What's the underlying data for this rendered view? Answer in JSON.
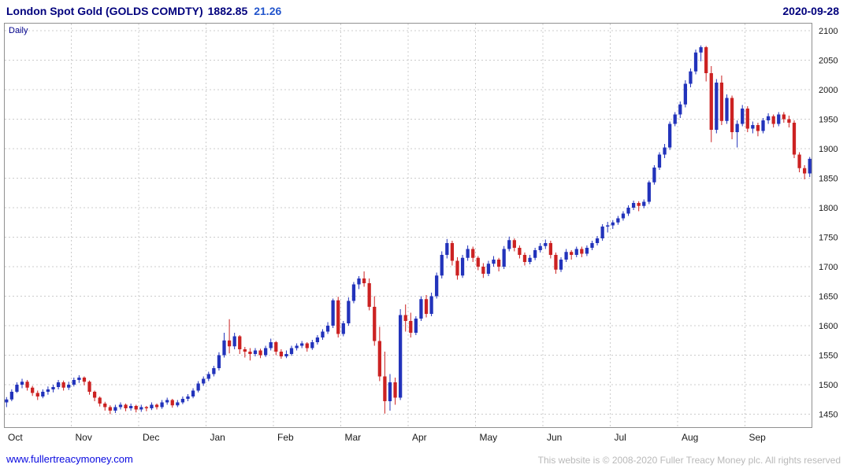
{
  "header": {
    "title": "London Spot Gold (GOLDS COMDTY)",
    "price": "1882.85",
    "change": "21.26",
    "date": "2020-09-28"
  },
  "chart": {
    "interval_label": "Daily"
  },
  "footer": {
    "link": "www.fullertreacymoney.com",
    "copyright": "This website is © 2008-2020 Fuller Treacy Money plc. All rights reserved"
  },
  "chart_data": {
    "type": "candlestick",
    "title": "London Spot Gold (GOLDS COMDTY)",
    "interval": "Daily",
    "last_price": 1882.85,
    "change": 21.26,
    "date": "2020-09-28",
    "x_labels": [
      "Oct",
      "Nov",
      "Dec",
      "Jan",
      "Feb",
      "Mar",
      "Apr",
      "May",
      "Jun",
      "Jul",
      "Aug",
      "Sep"
    ],
    "y_ticks": [
      1450,
      1500,
      1550,
      1600,
      1650,
      1700,
      1750,
      1800,
      1850,
      1900,
      1950,
      2000,
      2050,
      2100
    ],
    "ylim": [
      1428,
      2112
    ],
    "candles_per_month": 13,
    "grid": true,
    "legend": "none",
    "up_color": "#2233bb",
    "down_color": "#cc2222",
    "grid_color": "#cccccc",
    "border_color": "#909090",
    "axis_text_color": "#1a1a1a",
    "ohlc": [
      [
        1470,
        1479,
        1462,
        1475
      ],
      [
        1475,
        1492,
        1472,
        1488
      ],
      [
        1488,
        1504,
        1486,
        1500
      ],
      [
        1500,
        1510,
        1494,
        1505
      ],
      [
        1505,
        1508,
        1490,
        1495
      ],
      [
        1495,
        1498,
        1481,
        1486
      ],
      [
        1486,
        1490,
        1474,
        1480
      ],
      [
        1480,
        1492,
        1477,
        1488
      ],
      [
        1488,
        1497,
        1483,
        1492
      ],
      [
        1492,
        1500,
        1487,
        1496
      ],
      [
        1496,
        1508,
        1492,
        1504
      ],
      [
        1504,
        1507,
        1490,
        1495
      ],
      [
        1495,
        1505,
        1491,
        1500
      ],
      [
        1500,
        1512,
        1497,
        1508
      ],
      [
        1508,
        1516,
        1503,
        1512
      ],
      [
        1512,
        1514,
        1499,
        1505
      ],
      [
        1505,
        1507,
        1483,
        1488
      ],
      [
        1488,
        1490,
        1472,
        1478
      ],
      [
        1478,
        1480,
        1463,
        1468
      ],
      [
        1468,
        1471,
        1456,
        1462
      ],
      [
        1462,
        1465,
        1450,
        1456
      ],
      [
        1456,
        1466,
        1452,
        1462
      ],
      [
        1462,
        1470,
        1458,
        1466
      ],
      [
        1466,
        1468,
        1455,
        1460
      ],
      [
        1460,
        1468,
        1456,
        1464
      ],
      [
        1464,
        1466,
        1453,
        1458
      ],
      [
        1458,
        1466,
        1454,
        1462
      ],
      [
        1462,
        1464,
        1455,
        1460
      ],
      [
        1460,
        1470,
        1457,
        1466
      ],
      [
        1466,
        1468,
        1458,
        1462
      ],
      [
        1462,
        1474,
        1459,
        1470
      ],
      [
        1470,
        1478,
        1466,
        1474
      ],
      [
        1474,
        1476,
        1461,
        1465
      ],
      [
        1465,
        1474,
        1462,
        1470
      ],
      [
        1470,
        1480,
        1467,
        1476
      ],
      [
        1476,
        1484,
        1472,
        1480
      ],
      [
        1480,
        1494,
        1477,
        1490
      ],
      [
        1490,
        1506,
        1487,
        1502
      ],
      [
        1502,
        1514,
        1498,
        1510
      ],
      [
        1510,
        1522,
        1506,
        1518
      ],
      [
        1518,
        1532,
        1514,
        1528
      ],
      [
        1528,
        1555,
        1524,
        1550
      ],
      [
        1550,
        1588,
        1546,
        1575
      ],
      [
        1575,
        1611,
        1553,
        1565
      ],
      [
        1565,
        1588,
        1560,
        1582
      ],
      [
        1582,
        1584,
        1552,
        1560
      ],
      [
        1560,
        1564,
        1546,
        1556
      ],
      [
        1556,
        1562,
        1541,
        1552
      ],
      [
        1552,
        1562,
        1548,
        1558
      ],
      [
        1558,
        1561,
        1545,
        1550
      ],
      [
        1550,
        1566,
        1547,
        1562
      ],
      [
        1562,
        1578,
        1558,
        1572
      ],
      [
        1572,
        1574,
        1550,
        1556
      ],
      [
        1556,
        1560,
        1544,
        1548
      ],
      [
        1548,
        1558,
        1545,
        1552
      ],
      [
        1552,
        1566,
        1549,
        1562
      ],
      [
        1562,
        1570,
        1558,
        1566
      ],
      [
        1566,
        1574,
        1562,
        1570
      ],
      [
        1570,
        1572,
        1556,
        1562
      ],
      [
        1562,
        1576,
        1559,
        1572
      ],
      [
        1572,
        1584,
        1568,
        1580
      ],
      [
        1580,
        1594,
        1576,
        1590
      ],
      [
        1590,
        1606,
        1586,
        1600
      ],
      [
        1600,
        1646,
        1596,
        1643
      ],
      [
        1643,
        1649,
        1580,
        1586
      ],
      [
        1586,
        1608,
        1582,
        1604
      ],
      [
        1604,
        1648,
        1600,
        1642
      ],
      [
        1642,
        1674,
        1638,
        1670
      ],
      [
        1670,
        1684,
        1662,
        1680
      ],
      [
        1680,
        1692,
        1666,
        1672
      ],
      [
        1672,
        1680,
        1626,
        1632
      ],
      [
        1632,
        1650,
        1566,
        1574
      ],
      [
        1574,
        1598,
        1506,
        1514
      ],
      [
        1514,
        1556,
        1451,
        1472
      ],
      [
        1472,
        1518,
        1456,
        1504
      ],
      [
        1504,
        1512,
        1466,
        1478
      ],
      [
        1478,
        1628,
        1474,
        1618
      ],
      [
        1618,
        1636,
        1590,
        1608
      ],
      [
        1608,
        1622,
        1580,
        1588
      ],
      [
        1588,
        1616,
        1584,
        1612
      ],
      [
        1612,
        1650,
        1608,
        1645
      ],
      [
        1645,
        1652,
        1614,
        1620
      ],
      [
        1620,
        1656,
        1616,
        1650
      ],
      [
        1650,
        1690,
        1646,
        1685
      ],
      [
        1685,
        1726,
        1680,
        1720
      ],
      [
        1720,
        1747,
        1714,
        1740
      ],
      [
        1740,
        1744,
        1702,
        1710
      ],
      [
        1710,
        1716,
        1678,
        1685
      ],
      [
        1685,
        1720,
        1681,
        1715
      ],
      [
        1715,
        1736,
        1710,
        1730
      ],
      [
        1730,
        1734,
        1708,
        1715
      ],
      [
        1715,
        1718,
        1694,
        1700
      ],
      [
        1700,
        1706,
        1681,
        1688
      ],
      [
        1688,
        1710,
        1684,
        1705
      ],
      [
        1705,
        1718,
        1700,
        1712
      ],
      [
        1712,
        1715,
        1692,
        1700
      ],
      [
        1700,
        1735,
        1696,
        1730
      ],
      [
        1730,
        1751,
        1726,
        1745
      ],
      [
        1745,
        1748,
        1726,
        1732
      ],
      [
        1732,
        1736,
        1714,
        1720
      ],
      [
        1720,
        1724,
        1702,
        1708
      ],
      [
        1708,
        1720,
        1704,
        1715
      ],
      [
        1715,
        1732,
        1711,
        1728
      ],
      [
        1728,
        1740,
        1724,
        1735
      ],
      [
        1735,
        1746,
        1730,
        1740
      ],
      [
        1740,
        1744,
        1714,
        1720
      ],
      [
        1720,
        1724,
        1688,
        1695
      ],
      [
        1695,
        1716,
        1691,
        1712
      ],
      [
        1712,
        1730,
        1708,
        1725
      ],
      [
        1725,
        1728,
        1712,
        1720
      ],
      [
        1720,
        1734,
        1716,
        1730
      ],
      [
        1730,
        1734,
        1716,
        1722
      ],
      [
        1722,
        1736,
        1718,
        1732
      ],
      [
        1732,
        1744,
        1728,
        1740
      ],
      [
        1740,
        1752,
        1736,
        1748
      ],
      [
        1748,
        1772,
        1744,
        1768
      ],
      [
        1768,
        1776,
        1758,
        1770
      ],
      [
        1770,
        1779,
        1764,
        1775
      ],
      [
        1775,
        1786,
        1771,
        1782
      ],
      [
        1782,
        1794,
        1778,
        1790
      ],
      [
        1790,
        1804,
        1786,
        1800
      ],
      [
        1800,
        1812,
        1796,
        1808
      ],
      [
        1808,
        1811,
        1794,
        1803
      ],
      [
        1803,
        1814,
        1799,
        1810
      ],
      [
        1810,
        1846,
        1806,
        1843
      ],
      [
        1843,
        1872,
        1839,
        1868
      ],
      [
        1868,
        1894,
        1864,
        1890
      ],
      [
        1890,
        1908,
        1884,
        1902
      ],
      [
        1902,
        1946,
        1898,
        1942
      ],
      [
        1942,
        1962,
        1938,
        1958
      ],
      [
        1958,
        1980,
        1952,
        1975
      ],
      [
        1975,
        2016,
        1970,
        2010
      ],
      [
        2010,
        2036,
        2004,
        2031
      ],
      [
        2031,
        2068,
        2026,
        2063
      ],
      [
        2063,
        2075,
        2048,
        2072
      ],
      [
        2072,
        2074,
        2014,
        2028
      ],
      [
        2028,
        2040,
        1911,
        1932
      ],
      [
        1932,
        2018,
        1926,
        2012
      ],
      [
        2012,
        2024,
        1940,
        1947
      ],
      [
        1947,
        1992,
        1942,
        1986
      ],
      [
        1986,
        1990,
        1916,
        1928
      ],
      [
        1928,
        1948,
        1902,
        1942
      ],
      [
        1942,
        1974,
        1938,
        1968
      ],
      [
        1968,
        1972,
        1928,
        1934
      ],
      [
        1934,
        1946,
        1926,
        1940
      ],
      [
        1940,
        1944,
        1921,
        1930
      ],
      [
        1930,
        1952,
        1926,
        1948
      ],
      [
        1948,
        1960,
        1942,
        1955
      ],
      [
        1955,
        1958,
        1936,
        1942
      ],
      [
        1942,
        1962,
        1938,
        1958
      ],
      [
        1958,
        1962,
        1944,
        1950
      ],
      [
        1950,
        1956,
        1936,
        1944
      ],
      [
        1944,
        1948,
        1884,
        1890
      ],
      [
        1890,
        1894,
        1860,
        1867
      ],
      [
        1867,
        1872,
        1848,
        1858
      ],
      [
        1858,
        1886,
        1852,
        1882.85
      ]
    ]
  }
}
